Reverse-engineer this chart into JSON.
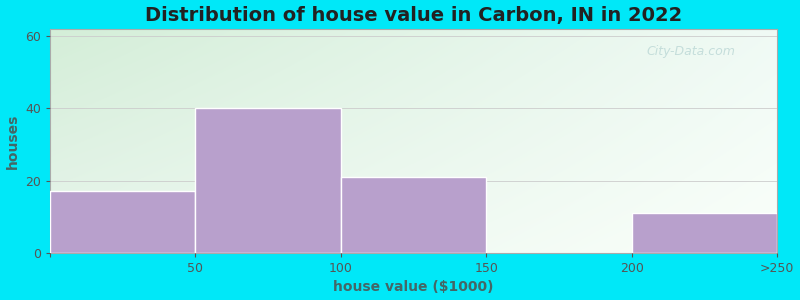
{
  "title": "Distribution of house value in Carbon, IN in 2022",
  "xlabel": "house value ($1000)",
  "ylabel": "houses",
  "bar_centers": [
    0.5,
    1.5,
    2.5,
    3.5,
    4.5
  ],
  "bar_heights": [
    17,
    40,
    21,
    0,
    11
  ],
  "bar_color": "#b8a0cc",
  "bar_edgecolor": "#ffffff",
  "xtick_positions": [
    0,
    1,
    2,
    3,
    4,
    5
  ],
  "xtick_labels": [
    "",
    "50",
    "100",
    "150",
    "200",
    ">250"
  ],
  "ytick_positions": [
    0,
    20,
    40,
    60
  ],
  "ytick_labels": [
    "0",
    "20",
    "40",
    "60"
  ],
  "ylim": [
    0,
    62
  ],
  "xlim": [
    0,
    5
  ],
  "background_outer": "#00e8f8",
  "grad_color_topleft": "#d4eed8",
  "grad_color_topright": "#e8f5ef",
  "grad_color_bottomleft": "#e0f0e4",
  "grad_color_bottomright": "#f5faf5",
  "title_fontsize": 14,
  "axis_label_fontsize": 10,
  "tick_fontsize": 9,
  "watermark_text": "City-Data.com",
  "watermark_color": "#aacccc",
  "watermark_alpha": 0.6
}
